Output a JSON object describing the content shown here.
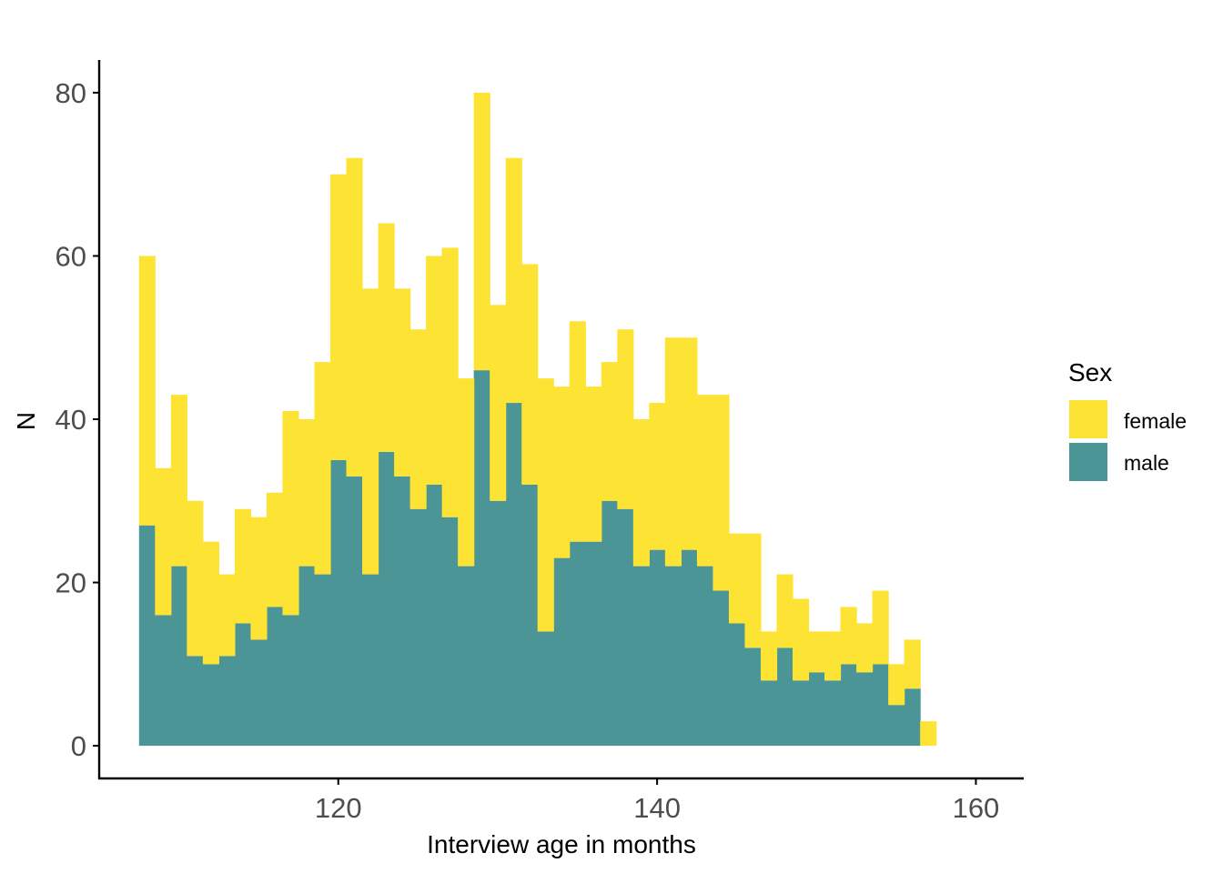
{
  "chart_data": {
    "type": "histogram-stacked",
    "title": "",
    "xlabel": "Interview age in months",
    "ylabel": "N",
    "xlim": [
      105,
      163
    ],
    "ylim": [
      -4,
      84
    ],
    "x_ticks": [
      120,
      140,
      160
    ],
    "y_ticks": [
      0,
      20,
      40,
      60,
      80
    ],
    "bin_start": 107.5,
    "bin_width": 1,
    "grid": false,
    "legend": {
      "title": "Sex",
      "placement": "right",
      "entries": [
        "female",
        "male"
      ]
    },
    "colors": {
      "female": "#FDE333",
      "male": "#4B9596",
      "axis": "#000000"
    },
    "series": [
      {
        "name": "male",
        "values": [
          27,
          16,
          22,
          11,
          10,
          11,
          15,
          13,
          17,
          16,
          22,
          21,
          35,
          33,
          21,
          36,
          33,
          29,
          32,
          28,
          22,
          46,
          30,
          42,
          32,
          14,
          23,
          25,
          25,
          30,
          29,
          22,
          24,
          22,
          24,
          22,
          19,
          15,
          12,
          8,
          12,
          8,
          9,
          8,
          10,
          9,
          10,
          5,
          7,
          0
        ]
      },
      {
        "name": "female",
        "values": [
          33,
          18,
          21,
          19,
          15,
          10,
          14,
          15,
          14,
          25,
          18,
          26,
          35,
          39,
          35,
          28,
          23,
          22,
          28,
          33,
          23,
          34,
          24,
          30,
          27,
          31,
          21,
          27,
          19,
          17,
          22,
          18,
          18,
          28,
          26,
          21,
          24,
          11,
          14,
          6,
          9,
          10,
          5,
          6,
          7,
          6,
          9,
          5,
          6,
          3
        ]
      }
    ]
  }
}
